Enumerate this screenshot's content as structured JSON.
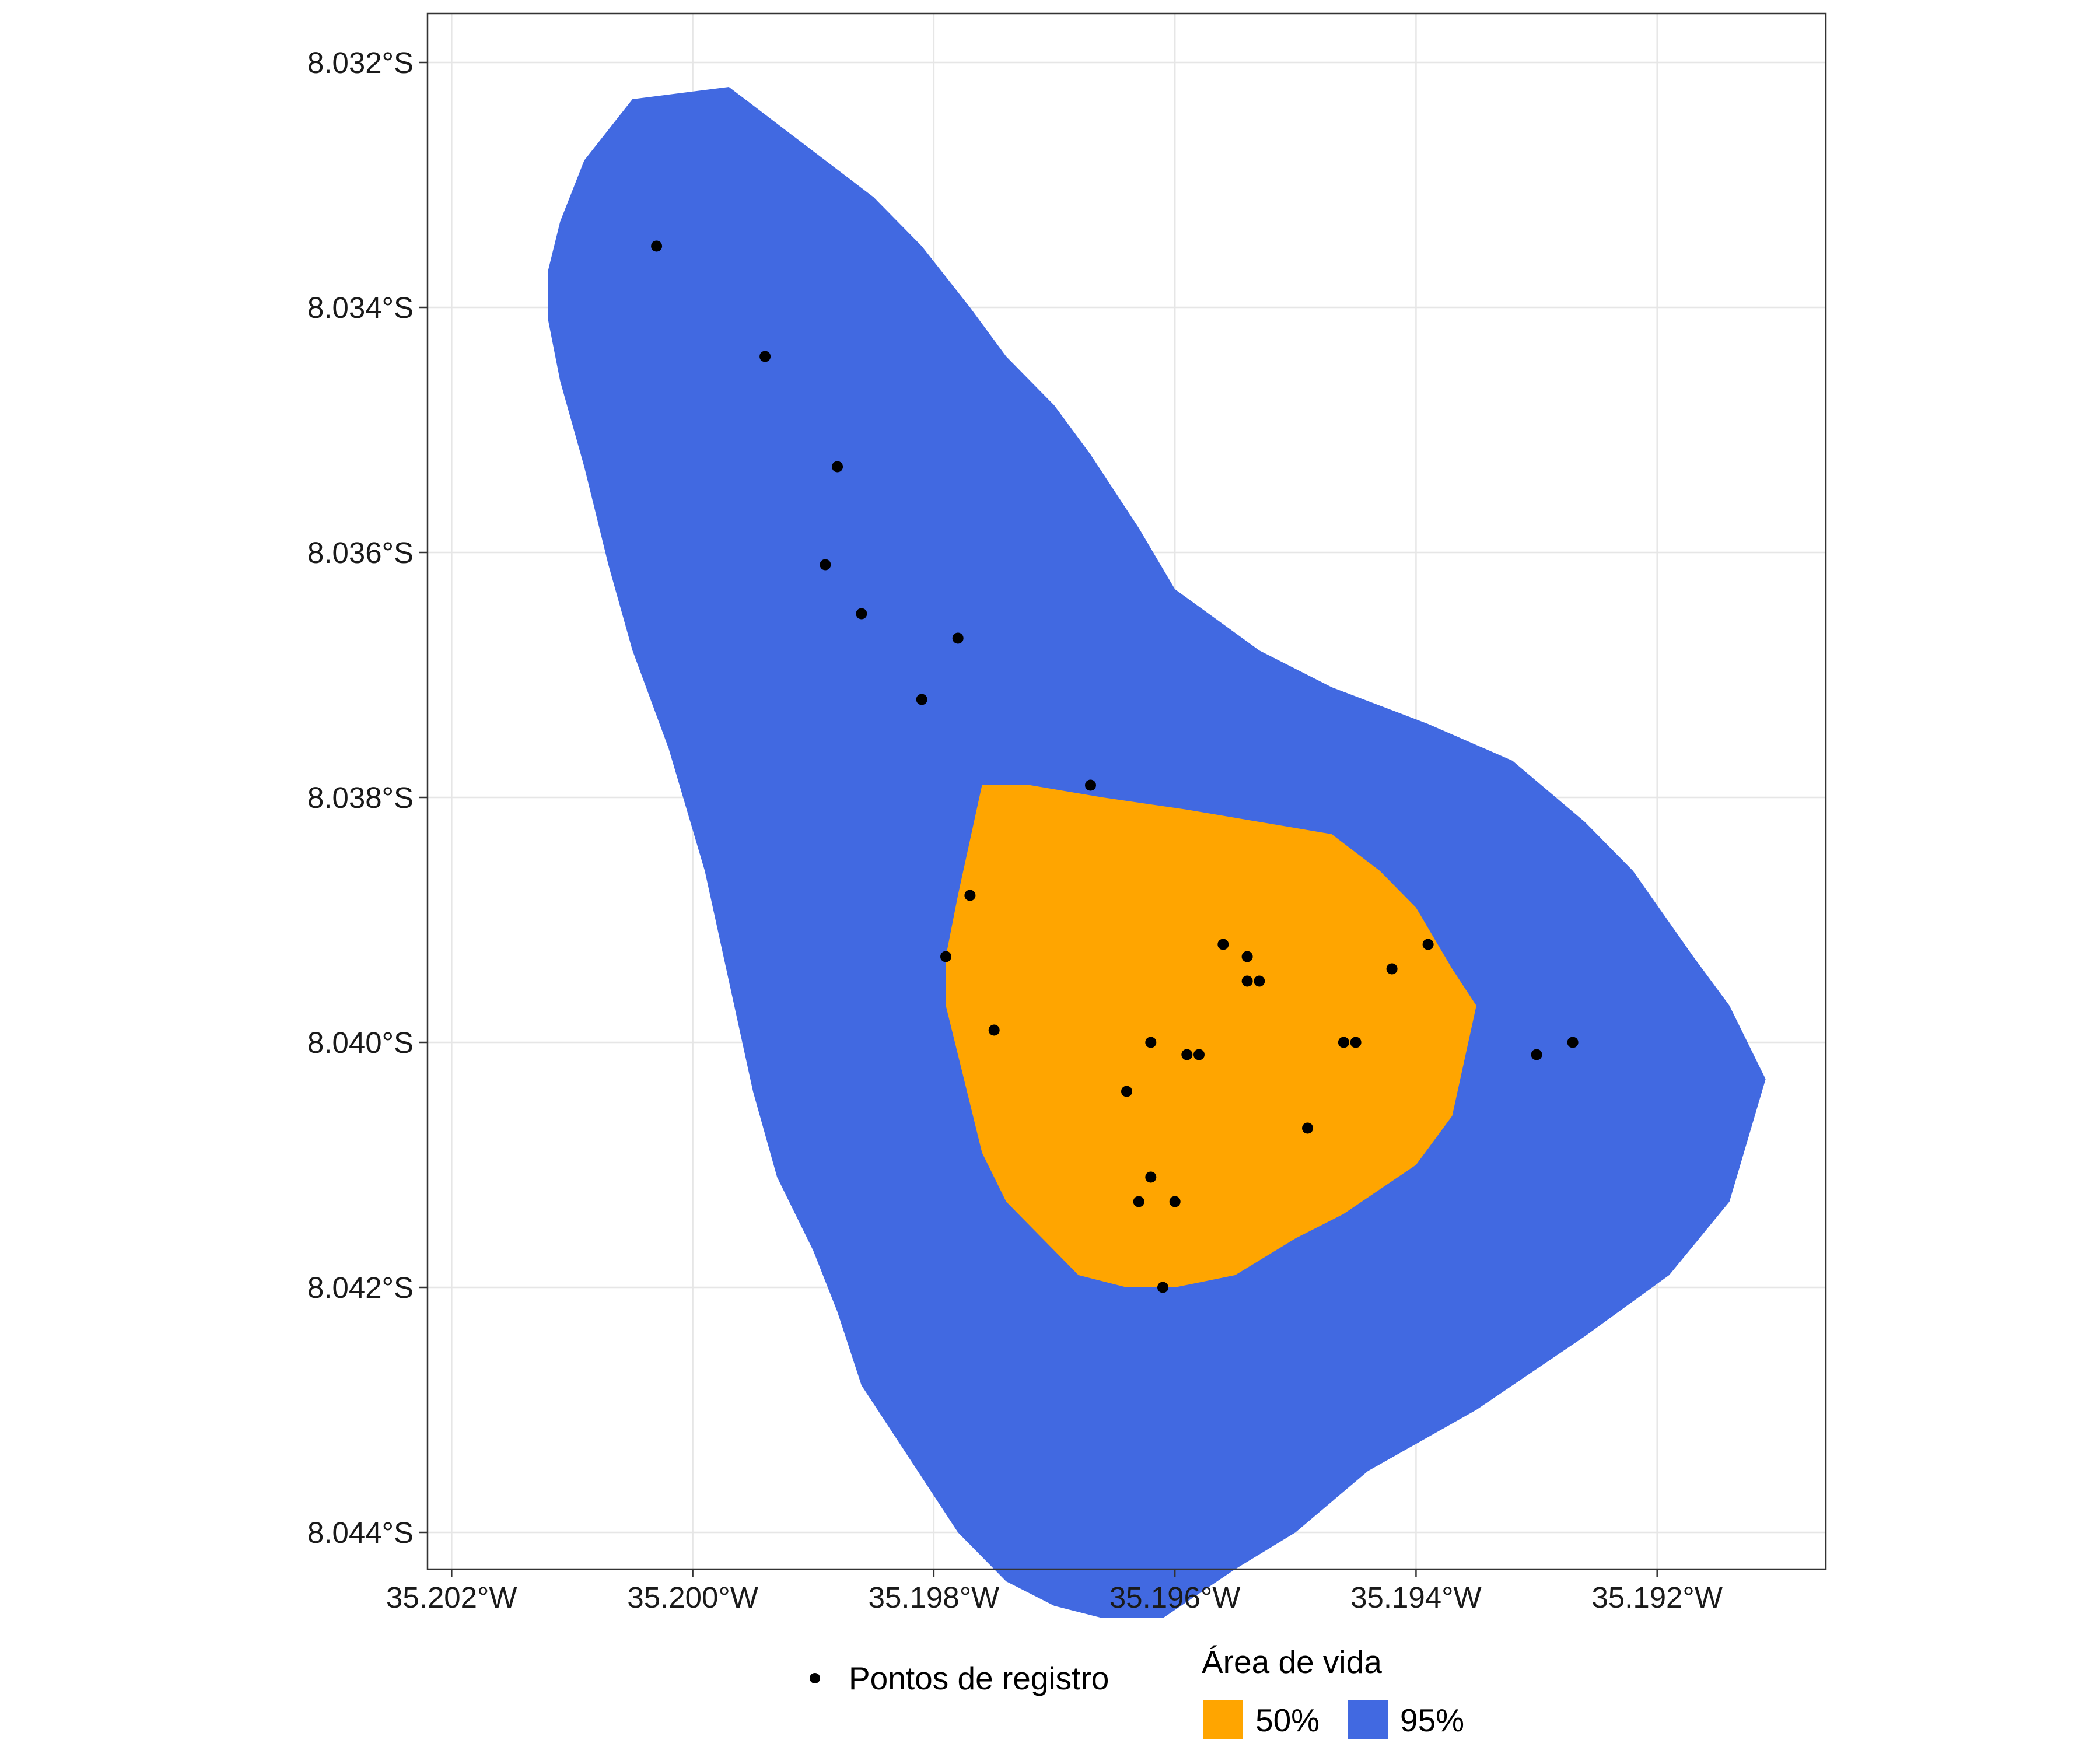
{
  "chart_data": {
    "type": "map",
    "grid": true,
    "xlim": [
      -35.2022,
      -35.1906
    ],
    "ylim": [
      -8.0443,
      -8.0316
    ],
    "x_ticks": [
      {
        "value": -35.202,
        "label": "35.202°W"
      },
      {
        "value": -35.2,
        "label": "35.200°W"
      },
      {
        "value": -35.198,
        "label": "35.198°W"
      },
      {
        "value": -35.196,
        "label": "35.196°W"
      },
      {
        "value": -35.194,
        "label": "35.194°W"
      },
      {
        "value": -35.192,
        "label": "35.192°W"
      }
    ],
    "y_ticks": [
      {
        "value": -8.032,
        "label": "8.032°S"
      },
      {
        "value": -8.034,
        "label": "8.034°S"
      },
      {
        "value": -8.036,
        "label": "8.036°S"
      },
      {
        "value": -8.038,
        "label": "8.038°S"
      },
      {
        "value": -8.04,
        "label": "8.040°S"
      },
      {
        "value": -8.042,
        "label": "8.042°S"
      },
      {
        "value": -8.044,
        "label": "8.044°S"
      }
    ],
    "areas": [
      {
        "label": "95%",
        "color": "#4169E1",
        "polygon": [
          [
            -35.2005,
            -8.0323
          ],
          [
            -35.1997,
            -8.0322
          ],
          [
            -35.1993,
            -8.0325
          ],
          [
            -35.1989,
            -8.0328
          ],
          [
            -35.1985,
            -8.0331
          ],
          [
            -35.1981,
            -8.0335
          ],
          [
            -35.1977,
            -8.034
          ],
          [
            -35.1974,
            -8.0344
          ],
          [
            -35.197,
            -8.0348
          ],
          [
            -35.1967,
            -8.0352
          ],
          [
            -35.1963,
            -8.0358
          ],
          [
            -35.196,
            -8.0363
          ],
          [
            -35.1953,
            -8.0368
          ],
          [
            -35.1947,
            -8.0371
          ],
          [
            -35.1939,
            -8.0374
          ],
          [
            -35.1932,
            -8.0377
          ],
          [
            -35.1926,
            -8.0382
          ],
          [
            -35.1922,
            -8.0386
          ],
          [
            -35.1917,
            -8.0393
          ],
          [
            -35.1914,
            -8.0397
          ],
          [
            -35.1911,
            -8.0403
          ],
          [
            -35.1914,
            -8.0413
          ],
          [
            -35.1919,
            -8.0419
          ],
          [
            -35.1926,
            -8.0424
          ],
          [
            -35.1935,
            -8.043
          ],
          [
            -35.1944,
            -8.0435
          ],
          [
            -35.195,
            -8.044
          ],
          [
            -35.1955,
            -8.0443
          ],
          [
            -35.1961,
            -8.0447
          ],
          [
            -35.1966,
            -8.0447
          ],
          [
            -35.197,
            -8.0446
          ],
          [
            -35.1974,
            -8.0444
          ],
          [
            -35.1978,
            -8.044
          ],
          [
            -35.1982,
            -8.0434
          ],
          [
            -35.1986,
            -8.0428
          ],
          [
            -35.1988,
            -8.0422
          ],
          [
            -35.199,
            -8.0417
          ],
          [
            -35.1993,
            -8.0411
          ],
          [
            -35.1995,
            -8.0404
          ],
          [
            -35.1997,
            -8.0395
          ],
          [
            -35.1999,
            -8.0386
          ],
          [
            -35.2002,
            -8.0376
          ],
          [
            -35.2005,
            -8.0368
          ],
          [
            -35.2007,
            -8.0361
          ],
          [
            -35.2009,
            -8.0353
          ],
          [
            -35.2011,
            -8.0346
          ],
          [
            -35.2012,
            -8.0341
          ],
          [
            -35.2012,
            -8.0337
          ],
          [
            -35.2011,
            -8.0333
          ],
          [
            -35.2009,
            -8.0328
          ]
        ]
      },
      {
        "label": "50%",
        "color": "#FFA500",
        "polygon": [
          [
            -35.1976,
            -8.0379
          ],
          [
            -35.1972,
            -8.0379
          ],
          [
            -35.1966,
            -8.038
          ],
          [
            -35.1959,
            -8.0381
          ],
          [
            -35.1953,
            -8.0382
          ],
          [
            -35.1947,
            -8.0383
          ],
          [
            -35.1943,
            -8.0386
          ],
          [
            -35.194,
            -8.0389
          ],
          [
            -35.1937,
            -8.0394
          ],
          [
            -35.1935,
            -8.0397
          ],
          [
            -35.1937,
            -8.0406
          ],
          [
            -35.194,
            -8.041
          ],
          [
            -35.1946,
            -8.0414
          ],
          [
            -35.195,
            -8.0416
          ],
          [
            -35.1955,
            -8.0419
          ],
          [
            -35.196,
            -8.042
          ],
          [
            -35.1964,
            -8.042
          ],
          [
            -35.1968,
            -8.0419
          ],
          [
            -35.1971,
            -8.0416
          ],
          [
            -35.1974,
            -8.0413
          ],
          [
            -35.1976,
            -8.0409
          ],
          [
            -35.1977,
            -8.0405
          ],
          [
            -35.1978,
            -8.0401
          ],
          [
            -35.1979,
            -8.0397
          ],
          [
            -35.1979,
            -8.0393
          ],
          [
            -35.1978,
            -8.0388
          ]
        ]
      }
    ],
    "points": [
      [
        -35.2003,
        -8.0335
      ],
      [
        -35.1994,
        -8.0344
      ],
      [
        -35.1988,
        -8.0353
      ],
      [
        -35.1989,
        -8.0361
      ],
      [
        -35.1986,
        -8.0365
      ],
      [
        -35.1978,
        -8.0367
      ],
      [
        -35.1981,
        -8.0372
      ],
      [
        -35.1967,
        -8.0379
      ],
      [
        -35.1977,
        -8.0388
      ],
      [
        -35.1979,
        -8.0393
      ],
      [
        -35.1975,
        -8.0399
      ],
      [
        -35.1956,
        -8.0392
      ],
      [
        -35.1954,
        -8.0393
      ],
      [
        -35.1954,
        -8.0395
      ],
      [
        -35.1953,
        -8.0395
      ],
      [
        -35.1962,
        -8.04
      ],
      [
        -35.1959,
        -8.0401
      ],
      [
        -35.1958,
        -8.0401
      ],
      [
        -35.1964,
        -8.0404
      ],
      [
        -35.1949,
        -8.0407
      ],
      [
        -35.1942,
        -8.0394
      ],
      [
        -35.1939,
        -8.0392
      ],
      [
        -35.1945,
        -8.04
      ],
      [
        -35.1946,
        -8.04
      ],
      [
        -35.193,
        -8.0401
      ],
      [
        -35.1927,
        -8.04
      ],
      [
        -35.1962,
        -8.0411
      ],
      [
        -35.1963,
        -8.0413
      ],
      [
        -35.196,
        -8.0413
      ],
      [
        -35.1961,
        -8.042
      ]
    ]
  },
  "legend": {
    "points_label": "Pontos de registro",
    "area_title": "Área de vida",
    "items": [
      {
        "label": "50%",
        "color": "#FFA500"
      },
      {
        "label": "95%",
        "color": "#4169E1"
      }
    ]
  }
}
